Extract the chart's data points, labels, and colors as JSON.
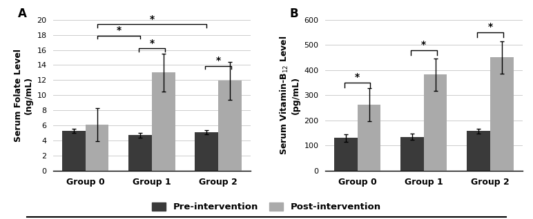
{
  "panel_A": {
    "title": "A",
    "ylabel": "Serum Folate Level\n(ng/mL)",
    "groups": [
      "Group 0",
      "Group 1",
      "Group 2"
    ],
    "pre_values": [
      5.3,
      4.7,
      5.1
    ],
    "post_values": [
      6.1,
      13.0,
      11.9
    ],
    "pre_errors": [
      0.3,
      0.3,
      0.3
    ],
    "post_errors": [
      2.2,
      2.5,
      2.5
    ],
    "ylim": [
      0,
      20
    ],
    "yticks": [
      0,
      2,
      4,
      6,
      8,
      10,
      12,
      14,
      16,
      18,
      20
    ]
  },
  "panel_B": {
    "title": "B",
    "ylabel": "Serum Vitamin-B$_{12}$ Level\n(pg/mL)",
    "groups": [
      "Group 0",
      "Group 1",
      "Group 2"
    ],
    "pre_values": [
      130,
      135,
      158
    ],
    "post_values": [
      262,
      382,
      450
    ],
    "pre_errors": [
      15,
      12,
      10
    ],
    "post_errors": [
      65,
      65,
      65
    ],
    "ylim": [
      0,
      600
    ],
    "yticks": [
      0,
      100,
      200,
      300,
      400,
      500,
      600
    ]
  },
  "pre_color": "#3a3a3a",
  "post_color": "#aaaaaa",
  "bar_width": 0.35,
  "legend_labels": [
    "Pre-intervention",
    "Post-intervention"
  ],
  "background_color": "#ffffff"
}
